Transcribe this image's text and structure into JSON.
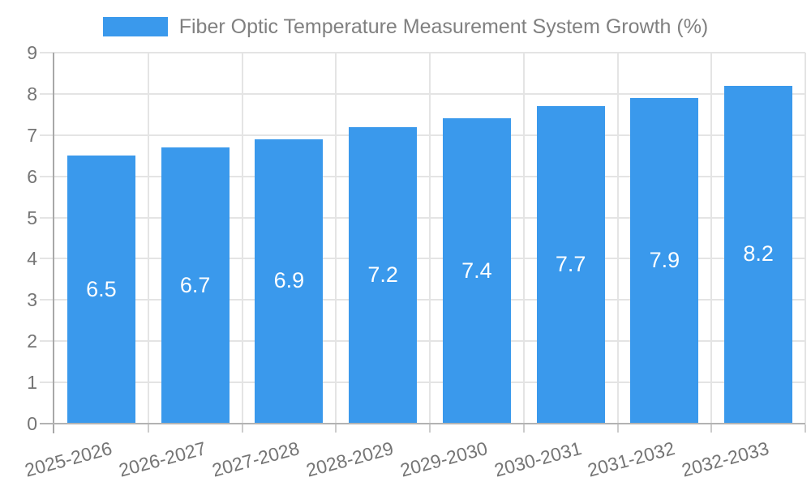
{
  "chart_data": {
    "type": "bar",
    "title": "Fiber Optic Temperature Measurement System Growth (%)",
    "categories": [
      "2025-2026",
      "2026-2027",
      "2027-2028",
      "2028-2029",
      "2029-2030",
      "2030-2031",
      "2031-2032",
      "2032-2033"
    ],
    "values": [
      6.5,
      6.7,
      6.9,
      7.2,
      7.4,
      7.7,
      7.9,
      8.2
    ],
    "value_label_decimals": 1,
    "xlabel": "",
    "ylabel": "",
    "ylim": [
      0,
      9
    ],
    "y_ticks": [
      0,
      1,
      2,
      3,
      4,
      5,
      6,
      7,
      8,
      9
    ],
    "grid": true,
    "legend_position": "top",
    "x_label_rotation_deg": -15
  },
  "colors": {
    "bar": "#3a99ec",
    "bar_label": "#ffffff",
    "grid": "#e4e4e4",
    "tick": "#cccccc",
    "axis_y": "#a8a8a8",
    "axis_x": "#b3b3b3",
    "axis_text": "#757575",
    "title_text": "#808080",
    "background": "#ffffff"
  }
}
